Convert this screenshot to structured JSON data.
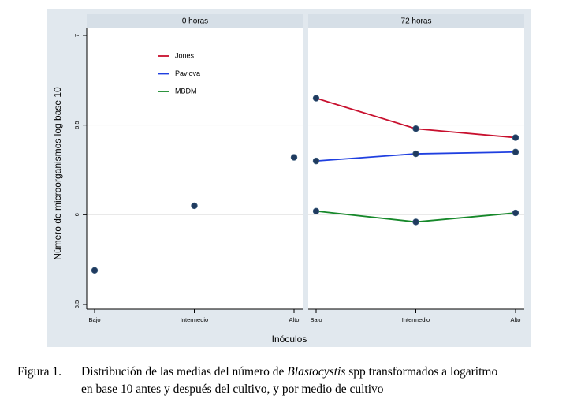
{
  "chart_data": [
    {
      "type": "scatter",
      "title": "0 horas",
      "ylabel": "Número de microorganismos log base 10",
      "xlabel": "Inóculos",
      "categories": [
        "Bajo",
        "Intermedio",
        "Alto"
      ],
      "values": [
        5.69,
        6.05,
        6.32
      ],
      "color": "#1f3a5f",
      "ylim": [
        5.5,
        7
      ],
      "yticks": [
        5.5,
        6,
        6.5,
        7
      ],
      "grid": true
    },
    {
      "type": "line",
      "title": "72 horas",
      "categories": [
        "Bajo",
        "Intermedio",
        "Alto"
      ],
      "marker_color": "#1f3a5f",
      "series": [
        {
          "name": "Jones",
          "color": "#c8102e",
          "values": [
            6.65,
            6.48,
            6.43
          ]
        },
        {
          "name": "Pavlova",
          "color": "#1f3fe0",
          "values": [
            6.3,
            6.34,
            6.35
          ]
        },
        {
          "name": "MBDM",
          "color": "#16882a",
          "values": [
            6.02,
            5.96,
            6.01
          ]
        }
      ],
      "ylim": [
        5.5,
        7
      ],
      "grid": true,
      "legend": "top-left"
    }
  ],
  "caption": {
    "label": "Figura 1.",
    "line1_before": "Distribución de las medias del número de",
    "line1_italic": "Blastocystis",
    "line1_after": "spp transformados a logaritmo",
    "line2": "en base 10 antes y después del cultivo, y por medio de cultivo"
  }
}
